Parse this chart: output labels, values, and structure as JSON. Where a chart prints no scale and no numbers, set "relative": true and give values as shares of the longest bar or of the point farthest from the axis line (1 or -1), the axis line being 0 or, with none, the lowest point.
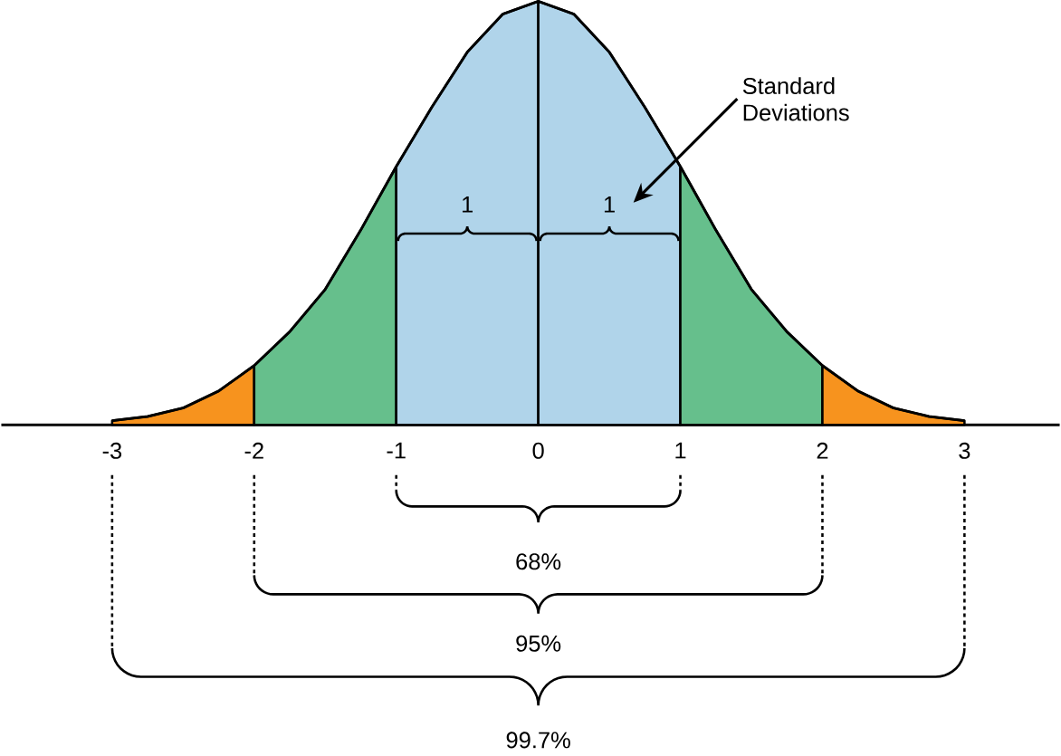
{
  "chart_data": {
    "type": "area",
    "relative": true,
    "xlim": [
      -3.78,
      3.67
    ],
    "xticks": [
      -3,
      -2,
      -1,
      0,
      1,
      2,
      3
    ],
    "series": [
      {
        "color": "#f7931e",
        "x": [
          -3,
          -2.75,
          -2.5,
          -2.25,
          -2
        ],
        "values": [
          0.01,
          0.02,
          0.04,
          0.08,
          0.14
        ]
      },
      {
        "color": "#66bf8c",
        "x": [
          -2,
          -1.75,
          -1.5,
          -1.25,
          -1
        ],
        "values": [
          0.14,
          0.22,
          0.32,
          0.46,
          0.61
        ]
      },
      {
        "color": "#b0d4ea",
        "x": [
          -1,
          -0.75,
          -0.5,
          -0.25,
          0
        ],
        "values": [
          0.61,
          0.75,
          0.88,
          0.97,
          1
        ]
      },
      {
        "color": "#b0d4ea",
        "x": [
          0,
          0.25,
          0.5,
          0.75,
          1
        ],
        "values": [
          1,
          0.97,
          0.88,
          0.75,
          0.61
        ]
      },
      {
        "color": "#66bf8c",
        "x": [
          1,
          1.25,
          1.5,
          1.75,
          2
        ],
        "values": [
          0.61,
          0.46,
          0.32,
          0.22,
          0.14
        ]
      },
      {
        "color": "#f7931e",
        "x": [
          2,
          2.25,
          2.5,
          2.75,
          3
        ],
        "values": [
          0.14,
          0.08,
          0.04,
          0.02,
          0.01
        ]
      },
      {
        "type": "line",
        "color": "#000000",
        "x": [
          -3,
          -2.75,
          -2.5,
          -2.25,
          -2,
          -1.75,
          -1.5,
          -1.25,
          -1,
          -0.75,
          -0.5,
          -0.25,
          0,
          0.25,
          0.5,
          0.75,
          1,
          1.25,
          1.5,
          1.75,
          2,
          2.25,
          2.5,
          2.75,
          3
        ],
        "values": [
          0.01,
          0.02,
          0.04,
          0.08,
          0.14,
          0.22,
          0.32,
          0.46,
          0.61,
          0.75,
          0.88,
          0.97,
          1,
          0.97,
          0.88,
          0.75,
          0.61,
          0.46,
          0.32,
          0.22,
          0.14,
          0.08,
          0.04,
          0.02,
          0.01
        ]
      }
    ],
    "annotations": [
      "Standard Deviations",
      "1",
      "1",
      "68%",
      "95%",
      "99.7%"
    ]
  }
}
